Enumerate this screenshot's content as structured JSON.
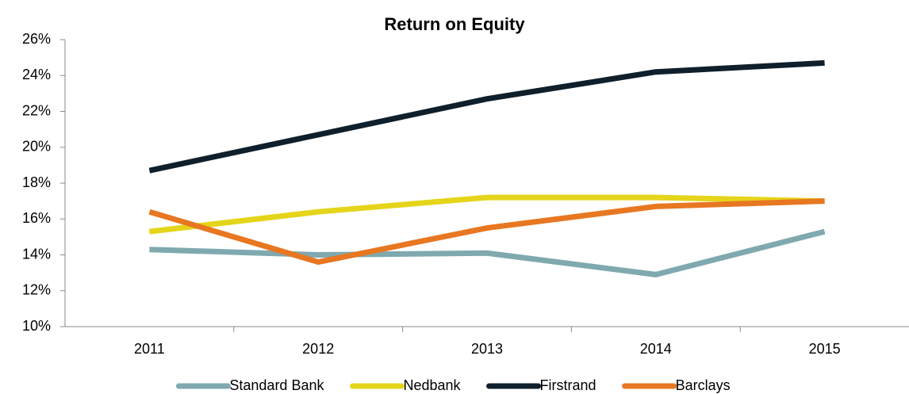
{
  "chart_data": {
    "type": "line",
    "title": "Return on Equity",
    "categories": [
      "2011",
      "2012",
      "2013",
      "2014",
      "2015"
    ],
    "series": [
      {
        "name": "Standard Bank",
        "color": "#7fa9ae",
        "values": [
          14.3,
          14.0,
          14.1,
          12.9,
          15.3
        ]
      },
      {
        "name": "Nedbank",
        "color": "#e5d51a",
        "values": [
          15.3,
          16.4,
          17.2,
          17.2,
          17.0
        ]
      },
      {
        "name": "Firstrand",
        "color": "#0f1f2b",
        "values": [
          18.7,
          20.7,
          22.7,
          24.2,
          24.7
        ]
      },
      {
        "name": "Barclays",
        "color": "#e87722",
        "values": [
          16.4,
          13.6,
          15.5,
          16.7,
          17.0
        ]
      }
    ],
    "ylim": [
      10,
      26
    ],
    "yticks": [
      {
        "value": 10,
        "label": "10%"
      },
      {
        "value": 12,
        "label": "12%"
      },
      {
        "value": 14,
        "label": "14%"
      },
      {
        "value": 16,
        "label": "16%"
      },
      {
        "value": 18,
        "label": "18%"
      },
      {
        "value": 20,
        "label": "20%"
      },
      {
        "value": 22,
        "label": "22%"
      },
      {
        "value": 24,
        "label": "24%"
      },
      {
        "value": 26,
        "label": "26%"
      }
    ],
    "legend": "bottom"
  }
}
